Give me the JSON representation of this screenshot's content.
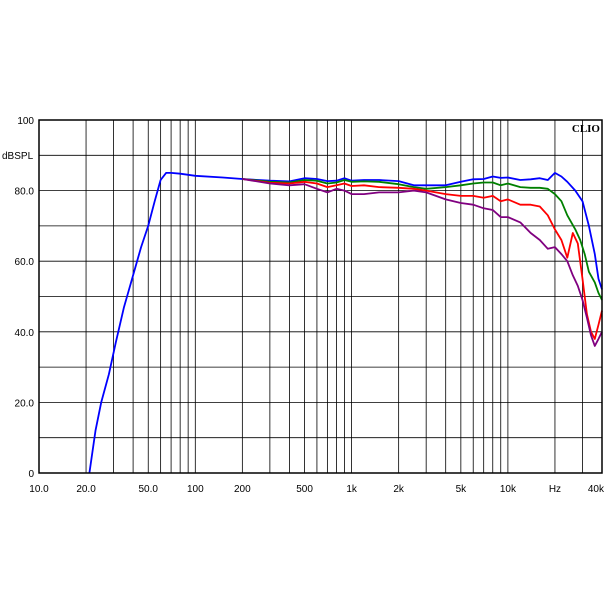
{
  "chart_data": {
    "type": "line",
    "title": "",
    "brand": "CLIO",
    "ylabel": "dBSPL",
    "xlabel": "",
    "x_scale": "log",
    "xlim": [
      10,
      40000
    ],
    "ylim": [
      0,
      100
    ],
    "grid": true,
    "legend": "none",
    "y_ticks": [
      {
        "value": 0,
        "label": "0"
      },
      {
        "value": 20,
        "label": "20.0"
      },
      {
        "value": 40,
        "label": "40.0"
      },
      {
        "value": 60,
        "label": "60.0"
      },
      {
        "value": 80,
        "label": "80.0"
      },
      {
        "value": 100,
        "label": "100"
      }
    ],
    "y_minor_ticks": [
      10,
      30,
      50,
      70,
      90
    ],
    "x_ticks": [
      {
        "value": 10,
        "label": "10.0"
      },
      {
        "value": 20,
        "label": "20.0"
      },
      {
        "value": 50,
        "label": "50.0"
      },
      {
        "value": 100,
        "label": "100"
      },
      {
        "value": 200,
        "label": "200"
      },
      {
        "value": 500,
        "label": "500"
      },
      {
        "value": 1000,
        "label": "1k"
      },
      {
        "value": 2000,
        "label": "2k"
      },
      {
        "value": 5000,
        "label": "5k"
      },
      {
        "value": 10000,
        "label": "10k"
      },
      {
        "value": 20000,
        "label": "Hz"
      },
      {
        "value": 40000,
        "label": "40k"
      }
    ],
    "series": [
      {
        "color": "#0000ff",
        "points": [
          [
            21,
            0
          ],
          [
            23,
            12
          ],
          [
            25,
            20
          ],
          [
            28,
            28
          ],
          [
            31,
            37
          ],
          [
            35,
            47
          ],
          [
            40,
            56
          ],
          [
            45,
            64
          ],
          [
            50,
            70
          ],
          [
            55,
            77
          ],
          [
            60,
            83
          ],
          [
            65,
            85
          ],
          [
            70,
            85
          ],
          [
            80,
            84.8
          ],
          [
            100,
            84.2
          ],
          [
            150,
            83.7
          ],
          [
            200,
            83.3
          ],
          [
            300,
            82.8
          ],
          [
            400,
            82.6
          ],
          [
            500,
            83.5
          ],
          [
            600,
            83.3
          ],
          [
            700,
            82.7
          ],
          [
            800,
            82.8
          ],
          [
            900,
            83.5
          ],
          [
            1000,
            82.8
          ],
          [
            1200,
            83
          ],
          [
            1500,
            83
          ],
          [
            2000,
            82.7
          ],
          [
            2500,
            81.5
          ],
          [
            3000,
            81.5
          ],
          [
            4000,
            81.5
          ],
          [
            5000,
            82.5
          ],
          [
            6000,
            83.2
          ],
          [
            7000,
            83.3
          ],
          [
            8000,
            84
          ],
          [
            9000,
            83.6
          ],
          [
            10000,
            83.7
          ],
          [
            12000,
            83
          ],
          [
            14000,
            83.2
          ],
          [
            16000,
            83.5
          ],
          [
            18000,
            83
          ],
          [
            20000,
            85
          ],
          [
            22000,
            84
          ],
          [
            24000,
            82.5
          ],
          [
            27000,
            80
          ],
          [
            30000,
            77
          ],
          [
            33000,
            70
          ],
          [
            36000,
            62
          ],
          [
            38000,
            55
          ],
          [
            40000,
            52
          ]
        ]
      },
      {
        "color": "#008000",
        "points": [
          [
            200,
            83.3
          ],
          [
            300,
            82.5
          ],
          [
            400,
            82.3
          ],
          [
            500,
            83
          ],
          [
            600,
            82.8
          ],
          [
            700,
            82
          ],
          [
            800,
            82.3
          ],
          [
            900,
            83
          ],
          [
            1000,
            82.5
          ],
          [
            1200,
            82.6
          ],
          [
            1500,
            82.5
          ],
          [
            2000,
            81.8
          ],
          [
            2500,
            81
          ],
          [
            3000,
            80.5
          ],
          [
            4000,
            81
          ],
          [
            5000,
            81.5
          ],
          [
            6000,
            82
          ],
          [
            7000,
            82.3
          ],
          [
            8000,
            82.3
          ],
          [
            9000,
            81.5
          ],
          [
            10000,
            82
          ],
          [
            12000,
            81
          ],
          [
            14000,
            80.8
          ],
          [
            16000,
            80.8
          ],
          [
            18000,
            80.5
          ],
          [
            20000,
            79
          ],
          [
            22000,
            77
          ],
          [
            24000,
            73
          ],
          [
            27000,
            69
          ],
          [
            29000,
            66
          ],
          [
            31000,
            62
          ],
          [
            33000,
            57
          ],
          [
            36000,
            54
          ],
          [
            38000,
            51
          ],
          [
            40000,
            49
          ]
        ]
      },
      {
        "color": "#ff0000",
        "points": [
          [
            200,
            83.3
          ],
          [
            300,
            82.2
          ],
          [
            400,
            82
          ],
          [
            500,
            82.5
          ],
          [
            600,
            82
          ],
          [
            700,
            81
          ],
          [
            800,
            81.5
          ],
          [
            900,
            82
          ],
          [
            1000,
            81.3
          ],
          [
            1200,
            81.5
          ],
          [
            1500,
            81
          ],
          [
            2000,
            80.8
          ],
          [
            2500,
            80.5
          ],
          [
            3000,
            80
          ],
          [
            4000,
            79
          ],
          [
            5000,
            78.5
          ],
          [
            6000,
            78.5
          ],
          [
            7000,
            78
          ],
          [
            8000,
            78.5
          ],
          [
            9000,
            77
          ],
          [
            10000,
            77.5
          ],
          [
            12000,
            76
          ],
          [
            14000,
            76
          ],
          [
            16000,
            75.5
          ],
          [
            18000,
            73
          ],
          [
            20000,
            69
          ],
          [
            22000,
            66
          ],
          [
            24000,
            61
          ],
          [
            26000,
            68
          ],
          [
            28000,
            65
          ],
          [
            30000,
            55
          ],
          [
            32000,
            45
          ],
          [
            34000,
            40
          ],
          [
            36000,
            38
          ],
          [
            38000,
            42
          ],
          [
            40000,
            46
          ]
        ]
      },
      {
        "color": "#800080",
        "points": [
          [
            200,
            83.3
          ],
          [
            300,
            82
          ],
          [
            400,
            81.5
          ],
          [
            500,
            81.8
          ],
          [
            600,
            80.5
          ],
          [
            700,
            79.5
          ],
          [
            800,
            80.5
          ],
          [
            900,
            80
          ],
          [
            1000,
            79
          ],
          [
            1200,
            79
          ],
          [
            1500,
            79.5
          ],
          [
            2000,
            79.5
          ],
          [
            2500,
            80
          ],
          [
            3000,
            79.5
          ],
          [
            4000,
            77.5
          ],
          [
            5000,
            76.5
          ],
          [
            6000,
            76
          ],
          [
            7000,
            75
          ],
          [
            8000,
            74.5
          ],
          [
            9000,
            72.5
          ],
          [
            10000,
            72.5
          ],
          [
            12000,
            71
          ],
          [
            14000,
            68
          ],
          [
            16000,
            66
          ],
          [
            18000,
            63.5
          ],
          [
            20000,
            64
          ],
          [
            22000,
            62
          ],
          [
            24000,
            60
          ],
          [
            26000,
            56
          ],
          [
            28000,
            53
          ],
          [
            30000,
            49
          ],
          [
            32000,
            44
          ],
          [
            34000,
            39
          ],
          [
            36000,
            36
          ],
          [
            38000,
            38
          ],
          [
            40000,
            40
          ]
        ]
      }
    ]
  }
}
